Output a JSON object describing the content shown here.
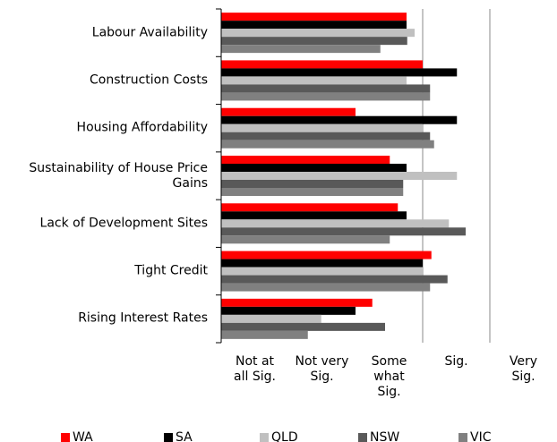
{
  "chart_data": {
    "type": "bar",
    "orientation": "horizontal",
    "categories": [
      "Labour Availability",
      "Construction Costs",
      "Housing Affordability",
      "Sustainability of House Price Gains",
      "Lack of Development Sites",
      "Tight Credit",
      "Rising Interest Rates"
    ],
    "series": [
      {
        "name": "WA",
        "color": "#ff0000",
        "values": [
          2.76,
          3.0,
          2.0,
          2.51,
          2.63,
          3.13,
          2.25
        ]
      },
      {
        "name": "SA",
        "color": "#000000",
        "values": [
          2.76,
          3.51,
          3.51,
          2.76,
          2.76,
          3.0,
          2.0
        ]
      },
      {
        "name": "QLD",
        "color": "#c0c0c0",
        "values": [
          2.88,
          2.76,
          3.0,
          3.51,
          3.39,
          3.0,
          1.49
        ]
      },
      {
        "name": "NSW",
        "color": "#595959",
        "values": [
          2.77,
          3.11,
          3.11,
          2.71,
          3.64,
          3.37,
          2.44
        ]
      },
      {
        "name": "VIC",
        "color": "#808080",
        "values": [
          2.37,
          3.11,
          3.17,
          2.71,
          2.51,
          3.11,
          1.29
        ]
      }
    ],
    "xlim": [
      0,
      5
    ],
    "xticks": [
      {
        "value": 0.5,
        "label": "Not at all Sig."
      },
      {
        "value": 1.5,
        "label": "Not very Sig."
      },
      {
        "value": 2.5,
        "label": "Some what Sig."
      },
      {
        "value": 3.5,
        "label": "Sig."
      },
      {
        "value": 4.5,
        "label": "Very Sig."
      }
    ],
    "grid_lines": [
      3,
      4
    ],
    "legend": "bottom"
  }
}
